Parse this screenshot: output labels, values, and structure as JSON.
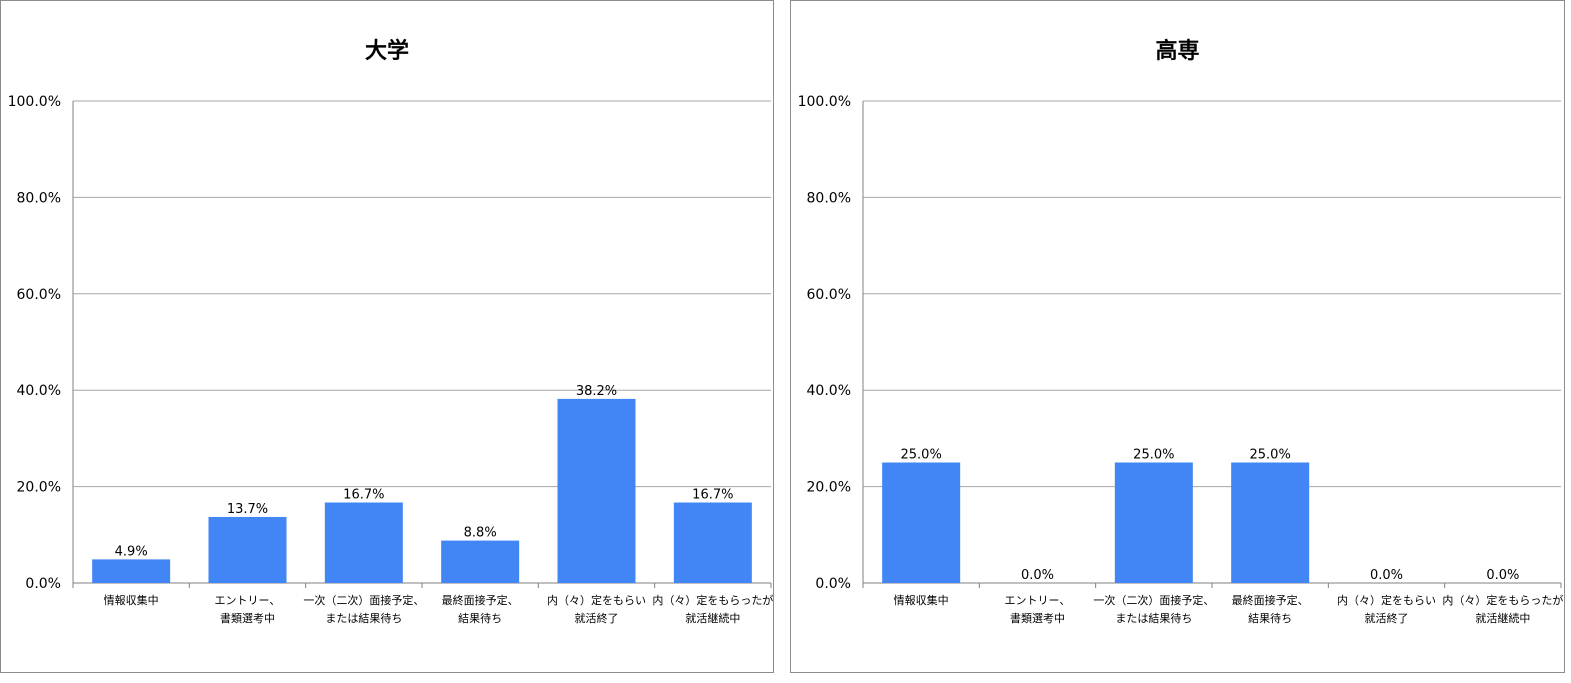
{
  "colors": {
    "bar": "#4285f4",
    "grid": "#a6a6a6",
    "axis": "#808080",
    "text": "#000000"
  },
  "chart_data": [
    {
      "type": "bar",
      "title": "大学",
      "categories": [
        [
          "情報収集中"
        ],
        [
          "エントリー、",
          "書類選考中"
        ],
        [
          "一次（二次）面接予定、",
          "または結果待ち"
        ],
        [
          "最終面接予定、",
          "結果待ち"
        ],
        [
          "内（々）定をもらい",
          "就活終了"
        ],
        [
          "内（々）定をもらったが",
          "就活継続中"
        ]
      ],
      "values": [
        4.9,
        13.7,
        16.7,
        8.8,
        38.2,
        16.7
      ],
      "value_labels": [
        "4.9%",
        "13.7%",
        "16.7%",
        "8.8%",
        "38.2%",
        "16.7%"
      ],
      "ylim": [
        0,
        100
      ],
      "yticks": [
        0,
        20,
        40,
        60,
        80,
        100
      ],
      "ytick_labels": [
        "0.0%",
        "20.0%",
        "40.0%",
        "60.0%",
        "80.0%",
        "100.0%"
      ],
      "grid": true
    },
    {
      "type": "bar",
      "title": "高専",
      "categories": [
        [
          "情報収集中"
        ],
        [
          "エントリー、",
          "書類選考中"
        ],
        [
          "一次（二次）面接予定、",
          "または結果待ち"
        ],
        [
          "最終面接予定、",
          "結果待ち"
        ],
        [
          "内（々）定をもらい",
          "就活終了"
        ],
        [
          "内（々）定をもらったが",
          "就活継続中"
        ]
      ],
      "values": [
        25.0,
        0.0,
        25.0,
        25.0,
        0.0,
        0.0
      ],
      "value_labels": [
        "25.0%",
        "0.0%",
        "25.0%",
        "25.0%",
        "0.0%",
        "0.0%"
      ],
      "ylim": [
        0,
        100
      ],
      "yticks": [
        0,
        20,
        40,
        60,
        80,
        100
      ],
      "ytick_labels": [
        "0.0%",
        "20.0%",
        "40.0%",
        "60.0%",
        "80.0%",
        "100.0%"
      ],
      "grid": true
    }
  ]
}
